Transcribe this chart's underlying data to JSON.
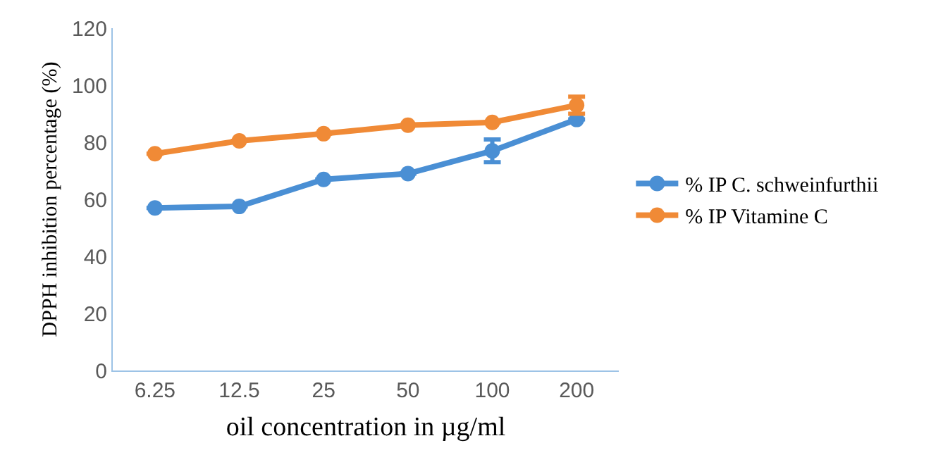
{
  "chart_data": {
    "type": "line",
    "xlabel": "oil concentration in µg/ml",
    "ylabel": "DPPH inhibition percentage (%)",
    "categories": [
      "6.25",
      "12.5",
      "25",
      "50",
      "100",
      "200"
    ],
    "series": [
      {
        "name": "% IP C. schweinfurthii",
        "color": "#4a8fd4",
        "values": [
          57,
          57.5,
          67,
          69,
          77,
          88
        ],
        "errors": [
          null,
          null,
          null,
          null,
          4,
          null
        ]
      },
      {
        "name": "% IP Vitamine C",
        "color": "#f08a36",
        "values": [
          76,
          80.5,
          83,
          86,
          87,
          93
        ],
        "errors": [
          null,
          null,
          null,
          null,
          null,
          3
        ]
      }
    ],
    "ylim": [
      0,
      120
    ],
    "yticks": [
      0,
      20,
      40,
      60,
      80,
      100,
      120
    ],
    "grid": false,
    "legend": "right",
    "marker": "circle",
    "line_style": "solid"
  }
}
